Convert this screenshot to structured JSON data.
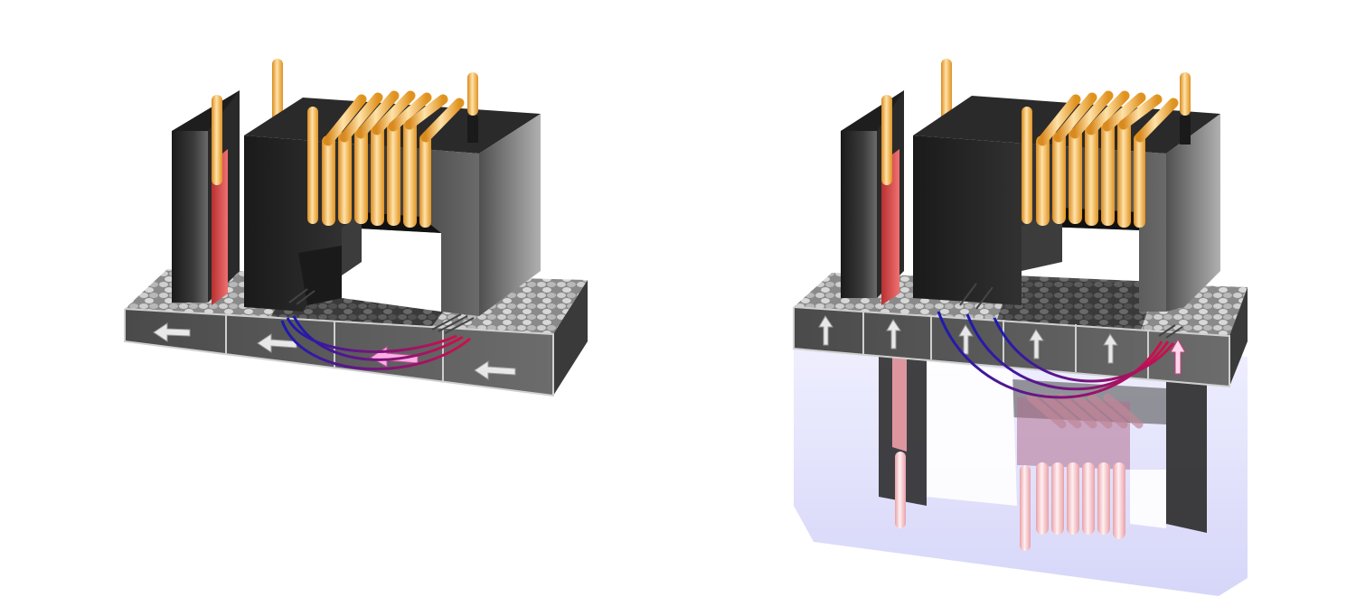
{
  "panels": [
    {
      "id": "left",
      "recording_layer": {
        "orientation": "longitudinal",
        "cells": 4,
        "arrow_direction": "left",
        "arrow_icon": "arrow-left-icon"
      },
      "head": {
        "write_coil_turns": 7,
        "read_sensor": true,
        "mirrored_lower_half": false
      },
      "field_lines": 3
    },
    {
      "id": "right",
      "recording_layer": {
        "orientation": "perpendicular",
        "cells": 6,
        "arrow_direction": "up",
        "arrow_icon": "arrow-up-icon"
      },
      "head": {
        "write_coil_turns": 7,
        "read_sensor": true,
        "mirrored_lower_half": true
      },
      "field_lines": 3
    }
  ],
  "colors": {
    "core": "#2b2b2b",
    "coil": "#f7b24d",
    "sensor": "#d94848",
    "medium": "#5a5a5a",
    "field_north": "#d0104a",
    "field_south": "#1a1ab0",
    "soft_underlayer": "#c8c8f5"
  }
}
